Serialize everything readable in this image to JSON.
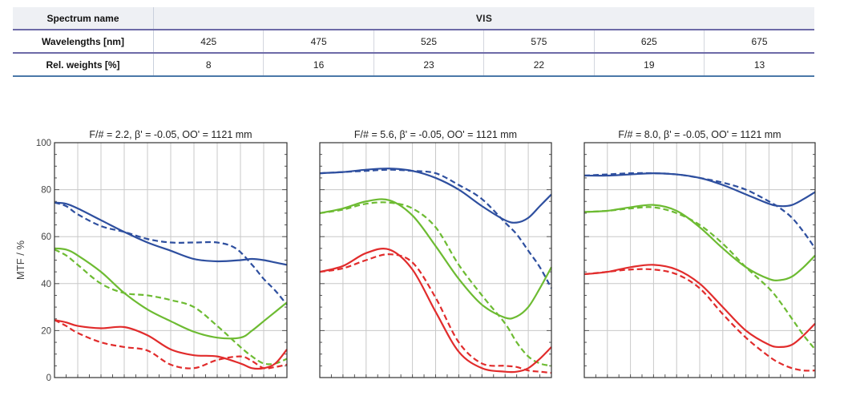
{
  "table": {
    "row_header_spectrum": "Spectrum name",
    "spectrum": "VIS",
    "row_header_wavelengths": "Wavelengths [nm]",
    "wavelengths": [
      "425",
      "475",
      "525",
      "575",
      "625",
      "675"
    ],
    "row_header_weights": "Rel. weights [%]",
    "weights": [
      "8",
      "16",
      "23",
      "22",
      "19",
      "13"
    ]
  },
  "colors": {
    "blue": "#2e4f9f",
    "green": "#6dbb32",
    "red": "#e12c2c",
    "grid": "#c8c8c8",
    "table_rule": "#6d6aa7"
  },
  "chart_data": [
    {
      "type": "line",
      "title": "F/# = 2.2, β' = -0.05, OO' = 1121 mm",
      "ylabel": "MTF / %",
      "ylim": [
        0,
        100
      ],
      "yticks": [
        "0",
        "20",
        "40",
        "60",
        "80",
        "100"
      ],
      "grid": true,
      "xlim": [
        0,
        1
      ],
      "series": [
        {
          "color": "blue",
          "style": "solid",
          "x": [
            0,
            0.05,
            0.1,
            0.2,
            0.3,
            0.4,
            0.5,
            0.6,
            0.7,
            0.8,
            0.85,
            0.9,
            0.95,
            1.0
          ],
          "y": [
            74.5,
            74,
            72,
            67,
            62,
            57.5,
            54,
            50.5,
            49.5,
            50,
            50.5,
            50,
            49,
            48
          ]
        },
        {
          "color": "blue",
          "style": "dashed",
          "x": [
            0,
            0.05,
            0.1,
            0.2,
            0.3,
            0.4,
            0.5,
            0.6,
            0.7,
            0.78,
            0.85,
            0.9,
            0.95,
            1.0
          ],
          "y": [
            74.5,
            73,
            69.5,
            64.5,
            62,
            59,
            57.5,
            57.5,
            57.5,
            55,
            48,
            42,
            37,
            31
          ]
        },
        {
          "color": "green",
          "style": "solid",
          "x": [
            0,
            0.05,
            0.1,
            0.2,
            0.3,
            0.4,
            0.5,
            0.6,
            0.7,
            0.8,
            0.85,
            0.9,
            0.95,
            1.0
          ],
          "y": [
            55,
            54.5,
            52,
            45,
            36,
            29,
            24,
            19.5,
            17,
            17,
            20,
            24,
            28,
            32
          ]
        },
        {
          "color": "green",
          "style": "dashed",
          "x": [
            0,
            0.05,
            0.1,
            0.2,
            0.3,
            0.4,
            0.5,
            0.6,
            0.7,
            0.8,
            0.85,
            0.9,
            0.95,
            1.0
          ],
          "y": [
            54.5,
            52,
            48,
            40,
            36,
            35,
            33,
            30,
            22,
            13,
            9,
            6,
            6,
            8
          ]
        },
        {
          "color": "red",
          "style": "solid",
          "x": [
            0,
            0.05,
            0.1,
            0.2,
            0.3,
            0.4,
            0.5,
            0.6,
            0.7,
            0.8,
            0.85,
            0.9,
            0.95,
            1.0
          ],
          "y": [
            24.5,
            23.5,
            22,
            21,
            21.5,
            18,
            12,
            9.5,
            9,
            6,
            4,
            4,
            6,
            12
          ]
        },
        {
          "color": "red",
          "style": "dashed",
          "x": [
            0,
            0.05,
            0.1,
            0.2,
            0.3,
            0.4,
            0.5,
            0.6,
            0.7,
            0.8,
            0.85,
            0.9,
            0.95,
            1.0
          ],
          "y": [
            24.5,
            22,
            19,
            15,
            13,
            11.5,
            5.5,
            4,
            7.5,
            9,
            7,
            4,
            4.5,
            5.5
          ]
        }
      ]
    },
    {
      "type": "line",
      "title": "F/# = 5.6, β' = -0.05, OO' = 1121 mm",
      "ylim": [
        0,
        100
      ],
      "grid": true,
      "xlim": [
        0,
        1
      ],
      "series": [
        {
          "color": "blue",
          "style": "solid",
          "x": [
            0,
            0.1,
            0.2,
            0.3,
            0.4,
            0.5,
            0.6,
            0.7,
            0.8,
            0.85,
            0.9,
            0.95,
            1.0
          ],
          "y": [
            87,
            87.5,
            88.5,
            89,
            88,
            85,
            80,
            73,
            67,
            66,
            68,
            73,
            78
          ]
        },
        {
          "color": "blue",
          "style": "dashed",
          "x": [
            0,
            0.1,
            0.2,
            0.3,
            0.4,
            0.5,
            0.6,
            0.7,
            0.8,
            0.85,
            0.9,
            0.95,
            1.0
          ],
          "y": [
            87,
            87.5,
            88,
            88.5,
            88,
            87,
            82,
            76,
            66,
            61,
            54,
            47,
            38
          ]
        },
        {
          "color": "green",
          "style": "solid",
          "x": [
            0,
            0.1,
            0.2,
            0.3,
            0.4,
            0.5,
            0.6,
            0.7,
            0.8,
            0.85,
            0.9,
            0.95,
            1.0
          ],
          "y": [
            70,
            72,
            75,
            75.5,
            69,
            56,
            42,
            31,
            25.5,
            26,
            30,
            38,
            47
          ]
        },
        {
          "color": "green",
          "style": "dashed",
          "x": [
            0,
            0.1,
            0.2,
            0.3,
            0.4,
            0.5,
            0.6,
            0.7,
            0.8,
            0.85,
            0.9,
            0.95,
            1.0
          ],
          "y": [
            70,
            71.5,
            74,
            74.5,
            72,
            64,
            48,
            35,
            23,
            15,
            9,
            6,
            5
          ]
        },
        {
          "color": "red",
          "style": "solid",
          "x": [
            0,
            0.1,
            0.2,
            0.3,
            0.4,
            0.5,
            0.6,
            0.7,
            0.8,
            0.85,
            0.9,
            0.95,
            1.0
          ],
          "y": [
            45,
            47.5,
            53,
            54.5,
            46,
            28,
            11,
            4,
            2.5,
            2.5,
            4,
            8,
            13
          ]
        },
        {
          "color": "red",
          "style": "dashed",
          "x": [
            0,
            0.1,
            0.2,
            0.3,
            0.4,
            0.5,
            0.6,
            0.7,
            0.8,
            0.85,
            0.9,
            0.95,
            1.0
          ],
          "y": [
            45,
            46.5,
            50,
            52.5,
            49,
            34,
            15,
            6,
            5,
            4.5,
            3,
            2.5,
            2
          ]
        }
      ]
    },
    {
      "type": "line",
      "title": "F/# = 8.0, β' = -0.05, OO' = 1121 mm",
      "ylim": [
        0,
        100
      ],
      "grid": true,
      "xlim": [
        0,
        1
      ],
      "series": [
        {
          "color": "blue",
          "style": "solid",
          "x": [
            0,
            0.1,
            0.2,
            0.3,
            0.4,
            0.5,
            0.6,
            0.7,
            0.8,
            0.85,
            0.9,
            0.95,
            1.0
          ],
          "y": [
            86,
            86,
            86.5,
            87,
            86.5,
            85,
            82,
            78,
            74,
            73,
            73.5,
            76,
            79
          ]
        },
        {
          "color": "blue",
          "style": "dashed",
          "x": [
            0,
            0.1,
            0.2,
            0.3,
            0.4,
            0.5,
            0.6,
            0.7,
            0.8,
            0.85,
            0.9,
            0.95,
            1.0
          ],
          "y": [
            86,
            86.5,
            87,
            87,
            86.5,
            85,
            83,
            80,
            75,
            72,
            68,
            62,
            55
          ]
        },
        {
          "color": "green",
          "style": "solid",
          "x": [
            0,
            0.1,
            0.2,
            0.3,
            0.4,
            0.5,
            0.6,
            0.7,
            0.8,
            0.85,
            0.9,
            0.95,
            1.0
          ],
          "y": [
            70.5,
            71,
            72.5,
            73.5,
            71,
            64,
            55,
            47,
            42,
            41.5,
            43,
            47,
            52
          ]
        },
        {
          "color": "green",
          "style": "dashed",
          "x": [
            0,
            0.1,
            0.2,
            0.3,
            0.4,
            0.5,
            0.6,
            0.7,
            0.8,
            0.85,
            0.9,
            0.95,
            1.0
          ],
          "y": [
            70.5,
            71,
            72,
            72.5,
            70,
            65,
            57,
            47,
            38,
            32,
            25,
            18,
            12
          ]
        },
        {
          "color": "red",
          "style": "solid",
          "x": [
            0,
            0.1,
            0.2,
            0.3,
            0.4,
            0.5,
            0.6,
            0.7,
            0.8,
            0.85,
            0.9,
            0.95,
            1.0
          ],
          "y": [
            44,
            45,
            47,
            48,
            46,
            40,
            30,
            20,
            14,
            13,
            14,
            18,
            23
          ]
        },
        {
          "color": "red",
          "style": "dashed",
          "x": [
            0,
            0.1,
            0.2,
            0.3,
            0.4,
            0.5,
            0.6,
            0.7,
            0.8,
            0.85,
            0.9,
            0.95,
            1.0
          ],
          "y": [
            44,
            45,
            46,
            46,
            44,
            38,
            27,
            17,
            9,
            6,
            4,
            3,
            3
          ]
        }
      ]
    }
  ]
}
